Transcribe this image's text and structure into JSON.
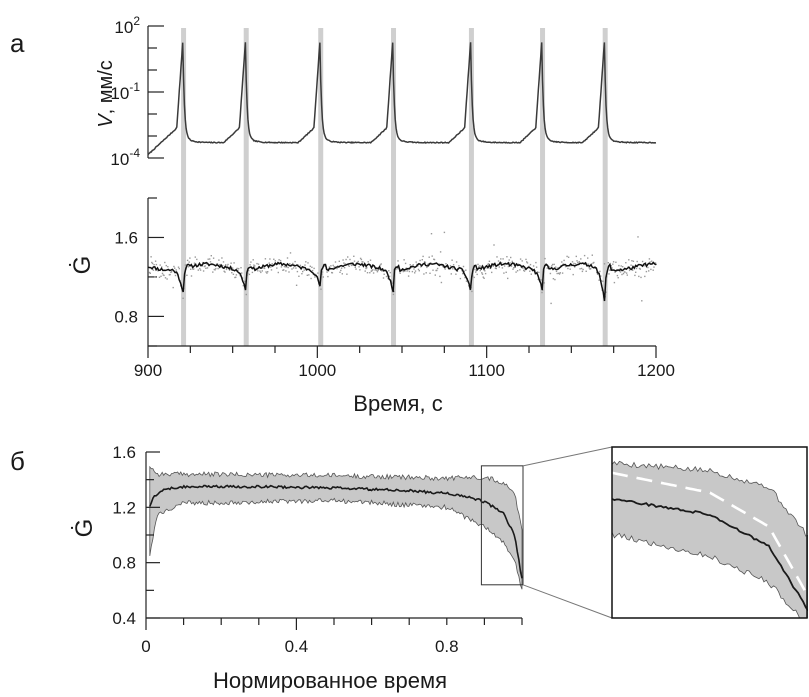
{
  "panel_labels": {
    "a": "а",
    "b": "б"
  },
  "chart_data": [
    {
      "id": "a-top",
      "type": "line",
      "ylabel_var": "V",
      "ylabel_unit": ", мм/с",
      "yscale": "log",
      "ylim": [
        0.0001,
        100
      ],
      "yticks": [
        {
          "base": "10",
          "exp": "2"
        },
        {
          "base": "10",
          "exp": "-1"
        },
        {
          "base": "10",
          "exp": "-4"
        }
      ],
      "xlim": [
        900,
        1200
      ],
      "grid": false,
      "event_times": [
        921,
        958,
        1002,
        1045,
        1091,
        1133,
        1170
      ],
      "colors": {
        "line": "#3a3a3a",
        "event_band": "#cfcfcf"
      }
    },
    {
      "id": "a-bottom",
      "type": "scatter",
      "ylabel": "Ġ",
      "xlabel": "Время, с",
      "xlim": [
        900,
        1200
      ],
      "xticks": [
        "900",
        "1000",
        "1100",
        "1200"
      ],
      "ylim": [
        0.5,
        2.0
      ],
      "yticks": [
        "1.6",
        "0.8"
      ],
      "baseline": 1.3,
      "event_times": [
        921,
        958,
        1002,
        1045,
        1091,
        1133,
        1170
      ],
      "dip_minimum": [
        1.04,
        1.08,
        1.12,
        1.08,
        1.06,
        1.1,
        0.92
      ],
      "colors": {
        "line": "#111111",
        "points": "#9a9a9a",
        "event_band": "#cfcfcf"
      }
    },
    {
      "id": "b",
      "type": "area",
      "ylabel": "Ġ",
      "xlabel": "Нормированное время",
      "xlim": [
        0,
        1
      ],
      "xticks": [
        "0",
        "0.4",
        "0.8"
      ],
      "ylim": [
        0.4,
        1.6
      ],
      "yticks": [
        "1.6",
        "1.2",
        "0.8",
        "0.4"
      ],
      "mean": [
        [
          0.01,
          1.2
        ],
        [
          0.02,
          1.28
        ],
        [
          0.05,
          1.33
        ],
        [
          0.1,
          1.35
        ],
        [
          0.3,
          1.35
        ],
        [
          0.5,
          1.34
        ],
        [
          0.7,
          1.32
        ],
        [
          0.8,
          1.3
        ],
        [
          0.85,
          1.28
        ],
        [
          0.9,
          1.24
        ],
        [
          0.95,
          1.16
        ],
        [
          0.98,
          1.0
        ],
        [
          1.0,
          0.68
        ]
      ],
      "band_upper": [
        [
          0.01,
          1.5
        ],
        [
          0.03,
          1.44
        ],
        [
          0.1,
          1.44
        ],
        [
          0.5,
          1.43
        ],
        [
          0.8,
          1.41
        ],
        [
          0.9,
          1.42
        ],
        [
          0.95,
          1.38
        ],
        [
          0.98,
          1.3
        ],
        [
          1.0,
          1.05
        ]
      ],
      "band_lower": [
        [
          0.01,
          0.86
        ],
        [
          0.03,
          1.15
        ],
        [
          0.1,
          1.23
        ],
        [
          0.5,
          1.25
        ],
        [
          0.8,
          1.2
        ],
        [
          0.9,
          1.06
        ],
        [
          0.95,
          0.95
        ],
        [
          0.98,
          0.82
        ],
        [
          1.0,
          0.6
        ]
      ],
      "zoom_region": {
        "x": [
          0.9,
          1.0
        ],
        "y": [
          0.64,
          1.5
        ]
      },
      "fit_curve": [
        [
          0.9,
          1.37
        ],
        [
          0.95,
          1.27
        ],
        [
          0.98,
          1.1
        ],
        [
          1.0,
          0.75
        ]
      ],
      "colors": {
        "mean": "#1a1a1a",
        "band": "#c8c8c8",
        "fit": "#ffffff"
      }
    }
  ]
}
